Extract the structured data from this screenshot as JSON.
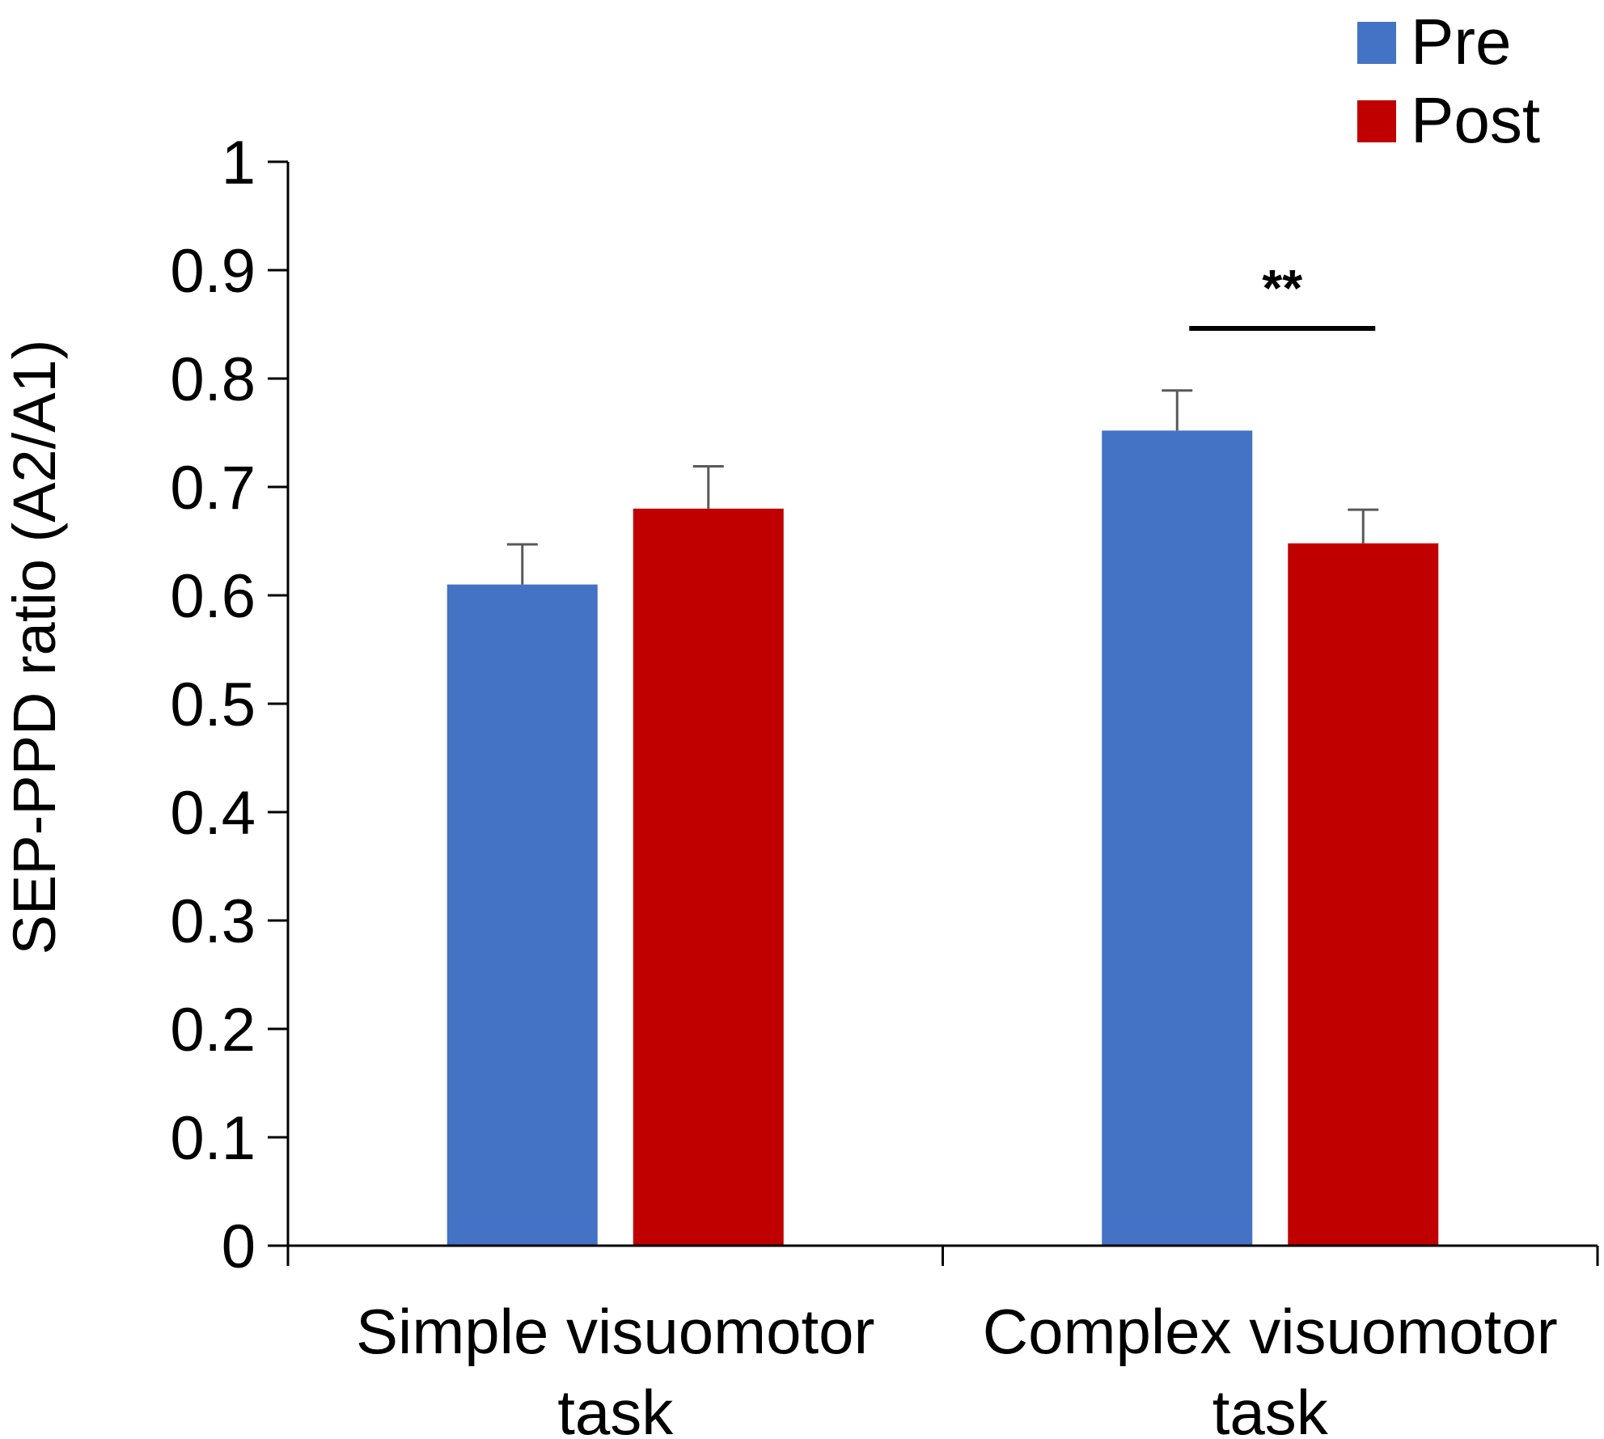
{
  "chart_data": {
    "type": "bar",
    "ylabel": "SEP-PPD ratio (A2/A1)",
    "xlabel": "",
    "ylim": [
      0,
      1
    ],
    "yticks": [
      "0",
      "0.1",
      "0.2",
      "0.3",
      "0.4",
      "0.5",
      "0.6",
      "0.7",
      "0.8",
      "0.9",
      "1"
    ],
    "grid": false,
    "legend_position": "top-right",
    "categories": [
      [
        "Simple visuomotor",
        "task"
      ],
      [
        "Complex visuomotor",
        "task"
      ]
    ],
    "series": [
      {
        "name": "Pre",
        "color": "#4472C4",
        "values": [
          0.61,
          0.752
        ],
        "errors": [
          0.037,
          0.037
        ]
      },
      {
        "name": "Post",
        "color": "#C00000",
        "values": [
          0.68,
          0.648
        ],
        "errors": [
          0.039,
          0.031
        ]
      }
    ],
    "annotations": [
      {
        "text": "**",
        "category": 1,
        "between_series": [
          0,
          1
        ]
      }
    ]
  }
}
